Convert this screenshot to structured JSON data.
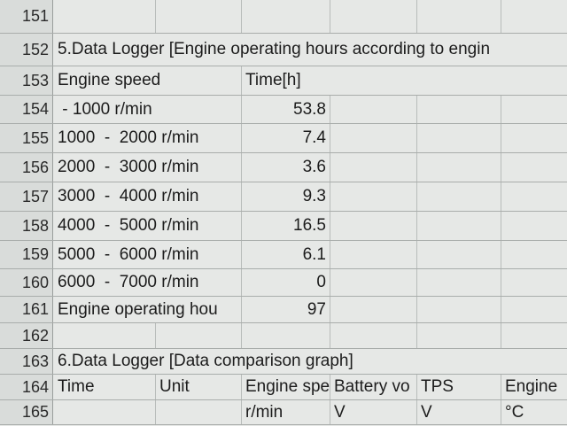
{
  "rows": [
    {
      "number": 151,
      "cells": [
        null,
        null,
        null,
        null,
        null,
        null
      ]
    },
    {
      "number": 152,
      "cells": [
        "5.Data Logger [Engine operating hours according to engin",
        null,
        null,
        null,
        null,
        null
      ]
    },
    {
      "number": 153,
      "cells": [
        "Engine speed",
        null,
        "Time[h]",
        null,
        null,
        null
      ]
    },
    {
      "number": 154,
      "cells": [
        " - 1000 r/min",
        null,
        "53.8",
        null,
        null,
        null
      ]
    },
    {
      "number": 155,
      "cells": [
        "1000  -  2000 r/min",
        null,
        "7.4",
        null,
        null,
        null
      ]
    },
    {
      "number": 156,
      "cells": [
        "2000  -  3000 r/min",
        null,
        "3.6",
        null,
        null,
        null
      ]
    },
    {
      "number": 157,
      "cells": [
        "3000  -  4000 r/min",
        null,
        "9.3",
        null,
        null,
        null
      ]
    },
    {
      "number": 158,
      "cells": [
        "4000  -  5000 r/min",
        null,
        "16.5",
        null,
        null,
        null
      ]
    },
    {
      "number": 159,
      "cells": [
        "5000  -  6000 r/min",
        null,
        "6.1",
        null,
        null,
        null
      ]
    },
    {
      "number": 160,
      "cells": [
        "6000  -  7000 r/min",
        null,
        "0",
        null,
        null,
        null
      ]
    },
    {
      "number": 161,
      "cells": [
        "Engine operating hou",
        null,
        "97",
        null,
        null,
        null
      ]
    },
    {
      "number": 162,
      "cells": [
        null,
        null,
        null,
        null,
        null,
        null
      ]
    },
    {
      "number": 163,
      "cells": [
        "6.Data Logger [Data comparison graph]",
        null,
        null,
        null,
        null,
        null
      ]
    },
    {
      "number": 164,
      "cells": [
        "Time",
        "Unit",
        "Engine spe",
        "Battery vo",
        "TPS",
        "Engine"
      ]
    },
    {
      "number": 165,
      "cells": [
        null,
        null,
        "r/min",
        "V",
        "V",
        "°C"
      ]
    }
  ]
}
